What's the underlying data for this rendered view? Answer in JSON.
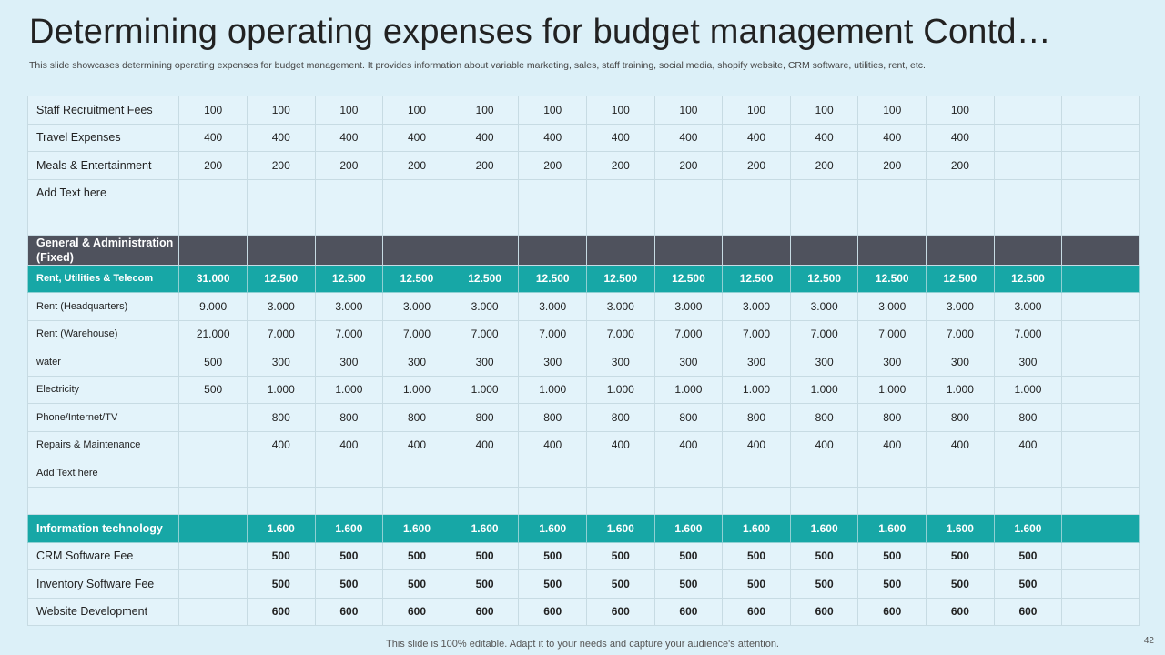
{
  "slide": {
    "title": "Determining operating expenses for budget management Contd…",
    "subtitle": "This slide showcases determining operating expenses for budget management. It provides information about variable marketing, sales, staff training, social media, shopify website, CRM software, utilities, rent, etc.",
    "footer": "This slide is 100% editable. Adapt it to your needs and capture your audience's attention.",
    "page_number": "42"
  },
  "table": {
    "rows": [
      {
        "style": "normal",
        "label": "Staff Recruitment Fees",
        "values": [
          "100",
          "100",
          "100",
          "100",
          "100",
          "100",
          "100",
          "100",
          "100",
          "100",
          "100",
          "100",
          "",
          ""
        ]
      },
      {
        "style": "normal",
        "label": "Travel  Expenses",
        "values": [
          "400",
          "400",
          "400",
          "400",
          "400",
          "400",
          "400",
          "400",
          "400",
          "400",
          "400",
          "400",
          "",
          ""
        ]
      },
      {
        "style": "normal",
        "label": "Meals & Entertainment",
        "values": [
          "200",
          "200",
          "200",
          "200",
          "200",
          "200",
          "200",
          "200",
          "200",
          "200",
          "200",
          "200",
          "",
          ""
        ]
      },
      {
        "style": "normal",
        "label": "Add Text here",
        "values": [
          "",
          "",
          "",
          "",
          "",
          "",
          "",
          "",
          "",
          "",
          "",
          "",
          "",
          ""
        ]
      },
      {
        "style": "normal",
        "label": "",
        "values": [
          "",
          "",
          "",
          "",
          "",
          "",
          "",
          "",
          "",
          "",
          "",
          "",
          "",
          ""
        ]
      },
      {
        "style": "gray",
        "label": "General & Administration (Fixed)",
        "values": [
          "",
          "",
          "",
          "",
          "",
          "",
          "",
          "",
          "",
          "",
          "",
          "",
          "",
          ""
        ]
      },
      {
        "style": "teal",
        "small": true,
        "label": "Rent, Utilities & Telecom",
        "values": [
          "31.000",
          "12.500",
          "12.500",
          "12.500",
          "12.500",
          "12.500",
          "12.500",
          "12.500",
          "12.500",
          "12.500",
          "12.500",
          "12.500",
          "12.500",
          ""
        ]
      },
      {
        "style": "normal",
        "small": true,
        "label": "Rent  (Headquarters)",
        "values": [
          "9.000",
          "3.000",
          "3.000",
          "3.000",
          "3.000",
          "3.000",
          "3.000",
          "3.000",
          "3.000",
          "3.000",
          "3.000",
          "3.000",
          "3.000",
          ""
        ]
      },
      {
        "style": "normal",
        "small": true,
        "label": "Rent  (Warehouse)",
        "values": [
          "21.000",
          "7.000",
          "7.000",
          "7.000",
          "7.000",
          "7.000",
          "7.000",
          "7.000",
          "7.000",
          "7.000",
          "7.000",
          "7.000",
          "7.000",
          ""
        ]
      },
      {
        "style": "normal",
        "small": true,
        "label": "water",
        "values": [
          "500",
          "300",
          "300",
          "300",
          "300",
          "300",
          "300",
          "300",
          "300",
          "300",
          "300",
          "300",
          "300",
          ""
        ]
      },
      {
        "style": "normal",
        "small": true,
        "label": "Electricity",
        "values": [
          "500",
          "1.000",
          "1.000",
          "1.000",
          "1.000",
          "1.000",
          "1.000",
          "1.000",
          "1.000",
          "1.000",
          "1.000",
          "1.000",
          "1.000",
          ""
        ]
      },
      {
        "style": "normal",
        "small": true,
        "label": "Phone/Internet/TV",
        "values": [
          "",
          "800",
          "800",
          "800",
          "800",
          "800",
          "800",
          "800",
          "800",
          "800",
          "800",
          "800",
          "800",
          ""
        ]
      },
      {
        "style": "normal",
        "small": true,
        "label": "Repairs & Maintenance",
        "values": [
          "",
          "400",
          "400",
          "400",
          "400",
          "400",
          "400",
          "400",
          "400",
          "400",
          "400",
          "400",
          "400",
          ""
        ]
      },
      {
        "style": "normal",
        "small": true,
        "label": "Add Text here",
        "values": [
          "",
          "",
          "",
          "",
          "",
          "",
          "",
          "",
          "",
          "",
          "",
          "",
          "",
          ""
        ]
      },
      {
        "style": "normal",
        "label": "",
        "values": [
          "",
          "",
          "",
          "",
          "",
          "",
          "",
          "",
          "",
          "",
          "",
          "",
          "",
          ""
        ]
      },
      {
        "style": "teal",
        "label": "Information technology",
        "values": [
          "",
          "1.600",
          "1.600",
          "1.600",
          "1.600",
          "1.600",
          "1.600",
          "1.600",
          "1.600",
          "1.600",
          "1.600",
          "1.600",
          "1.600",
          ""
        ]
      },
      {
        "style": "bold",
        "label": "CRM Software Fee",
        "values": [
          "",
          "500",
          "500",
          "500",
          "500",
          "500",
          "500",
          "500",
          "500",
          "500",
          "500",
          "500",
          "500",
          ""
        ]
      },
      {
        "style": "bold",
        "label": "Inventory  Software Fee",
        "values": [
          "",
          "500",
          "500",
          "500",
          "500",
          "500",
          "500",
          "500",
          "500",
          "500",
          "500",
          "500",
          "500",
          ""
        ]
      },
      {
        "style": "bold",
        "label": "Website Development",
        "values": [
          "",
          "600",
          "600",
          "600",
          "600",
          "600",
          "600",
          "600",
          "600",
          "600",
          "600",
          "600",
          "600",
          ""
        ]
      }
    ]
  }
}
